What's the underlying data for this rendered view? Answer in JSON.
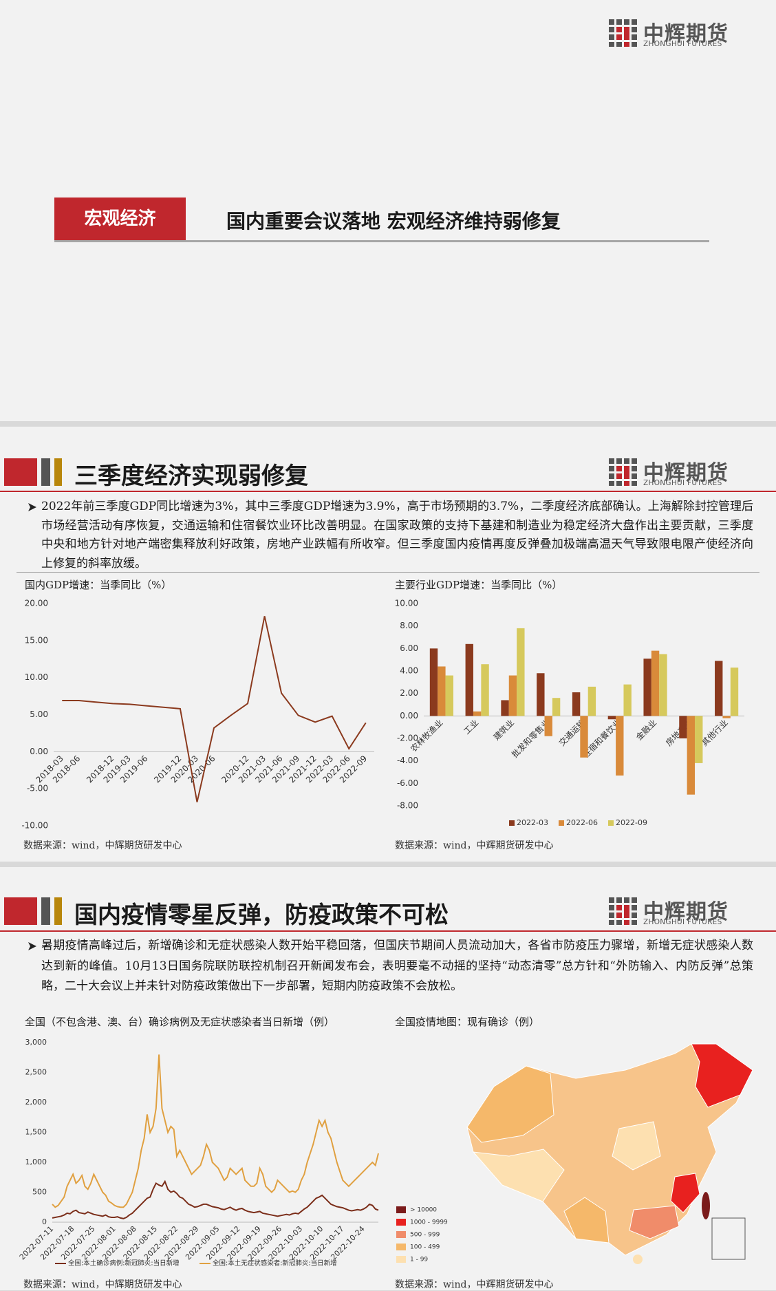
{
  "logo": {
    "name": "中辉期货",
    "sub": "ZHONGHUI FUTURES"
  },
  "cover": {
    "tag": "宏观经济",
    "title": "国内重要会议落地 宏观经济维持弱修复"
  },
  "sections": [
    {
      "heading": "三季度经济实现弱修复",
      "text": "2022年前三季度GDP同比增速为3%，其中三季度GDP增速为3.9%，高于市场预期的3.7%，二季度经济底部确认。上海解除封控管理后市场经营活动有序恢复，交通运输和住宿餐饮业环比改善明显。在国家政策的支持下基建和制造业为稳定经济大盘作出主要贡献，三季度中央和地方针对地产端密集释放利好政策，房地产业跌幅有所收窄。但三季度国内疫情再度反弹叠加极端高温天气导致限电限产使经济向上修复的斜率放缓。",
      "sources": [
        "数据来源：wind，中辉期货研发中心",
        "数据来源：wind，中辉期货研发中心"
      ]
    },
    {
      "heading": "国内疫情零星反弹，防疫政策不可松",
      "text": "暑期疫情高峰过后，新增确诊和无症状感染人数开始平稳回落，但国庆节期间人员流动加大，各省市防疫压力骤增，新增无症状感染人数达到新的峰值。10月13日国务院联防联控机制召开新闻发布会，表明要毫不动摇的坚持“动态清零”总方针和“外防输入、内防反弹”总策略，二十大会议上并未针对防疫政策做出下一步部署，短期内防疫政策不会放松。",
      "map": {
        "title": "全国疫情地图：现有确诊（例）",
        "legend": [
          {
            "label": "> 10000",
            "color": "#7b1b1b"
          },
          {
            "label": "1000 - 9999",
            "color": "#e8211f"
          },
          {
            "label": "500 - 999",
            "color": "#f08c6a"
          },
          {
            "label": "100 - 499",
            "color": "#f5b86a"
          },
          {
            "label": "1 - 99",
            "color": "#fde0b0"
          }
        ]
      },
      "sources": [
        "数据来源：wind，中辉期货研发中心",
        "数据来源：wind，中辉期货研发中心"
      ]
    }
  ],
  "chart_data": [
    {
      "type": "line",
      "title": "国内GDP增速：当季同比（%）",
      "categories": [
        "2018-03",
        "2018-06",
        null,
        "2018-12",
        "2019-03",
        "2019-06",
        null,
        "2019-12",
        "2020-03",
        "2020-06",
        null,
        "2020-12",
        "2021-03",
        "2021-06",
        "2021-09",
        "2021-12",
        "2022-03",
        "2022-06",
        "2022-09"
      ],
      "values": [
        6.9,
        6.9,
        6.7,
        6.5,
        6.4,
        6.2,
        6.0,
        5.8,
        -6.8,
        3.2,
        4.9,
        6.5,
        18.3,
        7.9,
        4.9,
        4.0,
        4.8,
        0.4,
        3.9
      ],
      "color": "#8b3a1e",
      "ylim": [
        -10,
        20
      ],
      "yticks": [
        {
          "value": 20,
          "label": "20.00"
        },
        {
          "value": 15,
          "label": "15.00"
        },
        {
          "value": 10,
          "label": "10.00"
        },
        {
          "value": 5,
          "label": "5.00"
        },
        {
          "value": 0,
          "label": "0.00"
        },
        {
          "value": -5,
          "label": "-5.00"
        },
        {
          "value": -10,
          "label": "-10.00"
        }
      ],
      "grid": false
    },
    {
      "type": "bar",
      "title": "主要行业GDP增速：当季同比（%）",
      "categories": [
        "农林牧渔业",
        "工业",
        "建筑业",
        "批发和零售业",
        "交通运输",
        "住宿和餐饮业",
        "金融业",
        "房地产业",
        "其他行业"
      ],
      "series": [
        {
          "name": "2022-03",
          "color": "#8b3a1e",
          "values": [
            6.0,
            6.4,
            1.4,
            3.8,
            2.1,
            -0.3,
            5.1,
            -2.0,
            4.9
          ]
        },
        {
          "name": "2022-06",
          "color": "#d98a3a",
          "values": [
            4.4,
            0.4,
            3.6,
            -1.8,
            -3.7,
            -5.3,
            5.8,
            -7.0,
            -0.2
          ]
        },
        {
          "name": "2022-09",
          "color": "#d6c95c",
          "values": [
            3.6,
            4.6,
            7.8,
            1.6,
            2.6,
            2.8,
            5.5,
            -4.2,
            4.3
          ]
        }
      ],
      "ylim": [
        -8,
        10
      ],
      "yticks": [
        {
          "value": 10,
          "label": "10.00"
        },
        {
          "value": 8,
          "label": "8.00"
        },
        {
          "value": 6,
          "label": "6.00"
        },
        {
          "value": 4,
          "label": "4.00"
        },
        {
          "value": 2,
          "label": "2.00"
        },
        {
          "value": 0,
          "label": "0.00"
        },
        {
          "value": -2,
          "label": "-2.00"
        },
        {
          "value": -4,
          "label": "-4.00"
        },
        {
          "value": -6,
          "label": "-6.00"
        },
        {
          "value": -8,
          "label": "-8.00"
        }
      ],
      "grid": false,
      "legend": "bottom"
    },
    {
      "type": "line",
      "title": "全国（不包含港、澳、台）确诊病例及无症状感染者当日新增（例）",
      "categories": [
        "2022-07-11",
        null,
        null,
        null,
        null,
        null,
        null,
        "2022-07-18",
        null,
        null,
        null,
        null,
        null,
        null,
        "2022-07-25",
        null,
        null,
        null,
        null,
        null,
        null,
        "2022-08-01",
        null,
        null,
        null,
        null,
        null,
        null,
        "2022-08-08",
        null,
        null,
        null,
        null,
        null,
        null,
        "2022-08-15",
        null,
        null,
        null,
        null,
        null,
        null,
        "2022-08-22",
        null,
        null,
        null,
        null,
        null,
        null,
        "2022-08-29",
        null,
        null,
        null,
        null,
        null,
        null,
        "2022-09-05",
        null,
        null,
        null,
        null,
        null,
        null,
        "2022-09-12",
        null,
        null,
        null,
        null,
        null,
        null,
        "2022-09-19",
        null,
        null,
        null,
        null,
        null,
        null,
        "2022-09-26",
        null,
        null,
        null,
        null,
        null,
        null,
        "2022-10-03",
        null,
        null,
        null,
        null,
        null,
        null,
        "2022-10-10",
        null,
        null,
        null,
        null,
        null,
        null,
        "2022-10-17",
        null,
        null,
        null,
        null,
        null,
        null,
        "2022-10-24",
        null,
        null,
        null,
        null,
        null
      ],
      "series": [
        {
          "name": "全国:本土确诊病例:新冠肺炎:当日新增",
          "color": "#7b2e1a",
          "values": [
            70,
            80,
            90,
            100,
            120,
            150,
            140,
            180,
            200,
            160,
            150,
            140,
            170,
            150,
            130,
            120,
            110,
            100,
            120,
            90,
            80,
            80,
            90,
            70,
            60,
            80,
            120,
            150,
            200,
            250,
            300,
            350,
            400,
            420,
            550,
            650,
            620,
            600,
            680,
            550,
            500,
            520,
            480,
            420,
            400,
            350,
            300,
            280,
            250,
            260,
            280,
            300,
            300,
            280,
            260,
            250,
            240,
            220,
            210,
            230,
            250,
            220,
            200,
            220,
            230,
            200,
            180,
            170,
            160,
            170,
            180,
            150,
            140,
            130,
            120,
            110,
            100,
            110,
            120,
            130,
            120,
            140,
            150,
            140,
            180,
            220,
            250,
            300,
            350,
            400,
            420,
            450,
            400,
            350,
            300,
            280,
            260,
            250,
            240,
            220,
            200,
            190,
            200,
            210,
            200,
            220,
            250,
            300,
            280,
            220,
            200
          ]
        },
        {
          "name": "全国:本土无症状感染者:新冠肺炎:当日新增",
          "color": "#e0a040",
          "values": [
            300,
            250,
            280,
            350,
            420,
            600,
            700,
            800,
            650,
            700,
            780,
            600,
            550,
            650,
            800,
            700,
            600,
            500,
            450,
            350,
            320,
            280,
            260,
            250,
            250,
            300,
            400,
            500,
            700,
            900,
            1200,
            1400,
            1800,
            1500,
            1600,
            1900,
            2800,
            1900,
            1700,
            1500,
            1600,
            1550,
            1100,
            1200,
            1100,
            1000,
            900,
            800,
            850,
            900,
            950,
            1100,
            1300,
            1200,
            1000,
            950,
            900,
            800,
            700,
            750,
            900,
            850,
            800,
            850,
            900,
            700,
            650,
            600,
            600,
            650,
            900,
            800,
            600,
            550,
            500,
            550,
            700,
            650,
            600,
            550,
            500,
            520,
            500,
            550,
            700,
            800,
            1000,
            1150,
            1300,
            1500,
            1700,
            1600,
            1700,
            1500,
            1400,
            1200,
            1000,
            850,
            700,
            650,
            600,
            650,
            700,
            750,
            800,
            850,
            900,
            950,
            1000,
            950,
            1150
          ]
        }
      ],
      "ylim": [
        0,
        3000
      ],
      "yticks": [
        0,
        500,
        {
          "value": 1000,
          "label": "1,000"
        },
        {
          "value": 1500,
          "label": "1,500"
        },
        {
          "value": 2000,
          "label": "2,000"
        },
        {
          "value": 2500,
          "label": "2,500"
        },
        {
          "value": 3000,
          "label": "3,000"
        }
      ],
      "grid": false,
      "legend": "bottom"
    }
  ]
}
